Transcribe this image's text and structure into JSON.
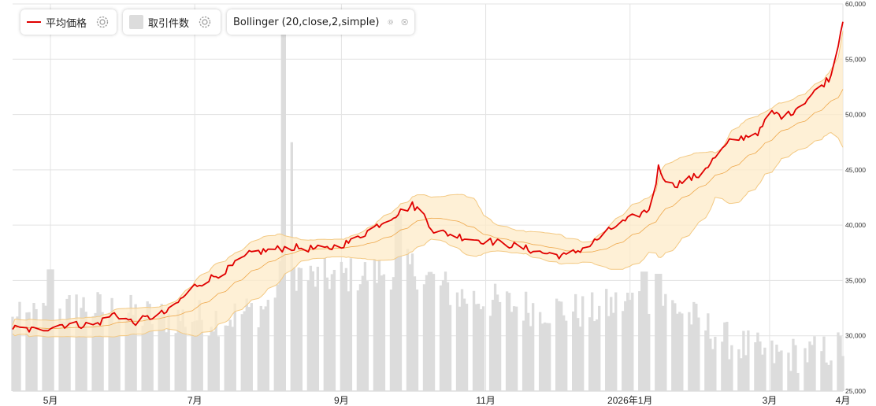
{
  "legend": {
    "avg_price_label": "平均価格",
    "trade_count_label": "取引件数",
    "bollinger_label": "Bollinger (20,close,2,simple)"
  },
  "colors": {
    "price": "#e00000",
    "band_fill": "#fdebc8",
    "band_line": "#f3c983",
    "mid_line": "#eea74a",
    "volume": "#dcdcdc",
    "grid": "#e3e3e3"
  },
  "icons": [
    "gear-icon",
    "gear-icon",
    "gear-icon",
    "close-icon"
  ],
  "chart_data": {
    "type": "line",
    "title": "",
    "x_tick_labels": [
      "5月",
      "7月",
      "9月",
      "11月",
      "2026年1月",
      "3月",
      "4月"
    ],
    "y_tick_labels": [
      "25,000",
      "30,000",
      "35,000",
      "40,000",
      "45,000",
      "50,000",
      "55,000",
      "60,000"
    ],
    "ylim": [
      25000,
      60000
    ],
    "grid": true,
    "legend_position": "top-left",
    "x_range_months": [
      "2025-04-15",
      "2026-04-01"
    ],
    "price_anchors": [
      [
        "2025-04-15",
        30700
      ],
      [
        "2025-04-25",
        30500
      ],
      [
        "2025-05-05",
        31000
      ],
      [
        "2025-05-20",
        31000
      ],
      [
        "2025-05-28",
        32000
      ],
      [
        "2025-06-05",
        31200
      ],
      [
        "2025-06-20",
        32200
      ],
      [
        "2025-07-01",
        34500
      ],
      [
        "2025-07-15",
        36000
      ],
      [
        "2025-07-25",
        37500
      ],
      [
        "2025-08-10",
        38000
      ],
      [
        "2025-08-25",
        37800
      ],
      [
        "2025-09-05",
        38500
      ],
      [
        "2025-09-20",
        40500
      ],
      [
        "2025-10-01",
        41800
      ],
      [
        "2025-10-05",
        41200
      ],
      [
        "2025-10-10",
        39500
      ],
      [
        "2025-10-25",
        38800
      ],
      [
        "2025-11-10",
        38300
      ],
      [
        "2025-11-25",
        37500
      ],
      [
        "2025-12-05",
        37200
      ],
      [
        "2025-12-15",
        38200
      ],
      [
        "2025-12-25",
        39800
      ],
      [
        "2026-01-05",
        41000
      ],
      [
        "2026-01-10",
        41500
      ],
      [
        "2026-01-13",
        45200
      ],
      [
        "2026-01-18",
        43500
      ],
      [
        "2026-01-30",
        44500
      ],
      [
        "2026-02-12",
        47500
      ],
      [
        "2026-02-25",
        48500
      ],
      [
        "2026-03-01",
        50200
      ],
      [
        "2026-03-08",
        49800
      ],
      [
        "2026-03-20",
        52000
      ],
      [
        "2026-03-27",
        53500
      ],
      [
        "2026-04-01",
        58500
      ]
    ],
    "volume_anchors": [
      [
        "2025-04-15",
        31000
      ],
      [
        "2025-05-15",
        32500
      ],
      [
        "2025-06-15",
        31500
      ],
      [
        "2025-07-15",
        31500
      ],
      [
        "2025-08-01",
        32500
      ],
      [
        "2025-08-08",
        36000
      ],
      [
        "2025-08-20",
        35000
      ],
      [
        "2025-09-15",
        35500
      ],
      [
        "2025-10-01",
        36000
      ],
      [
        "2025-10-20",
        33500
      ],
      [
        "2025-11-15",
        32500
      ],
      [
        "2025-12-15",
        32000
      ],
      [
        "2026-01-10",
        33500
      ],
      [
        "2026-01-20",
        32500
      ],
      [
        "2026-02-10",
        29500
      ],
      [
        "2026-03-01",
        28000
      ],
      [
        "2026-03-20",
        28200
      ],
      [
        "2026-04-01",
        28800
      ]
    ],
    "volume_spikes": [
      [
        "2025-08-08",
        57500
      ],
      [
        "2025-08-10",
        47500
      ],
      [
        "2025-05-01",
        36000
      ],
      [
        "2025-09-25",
        41000
      ],
      [
        "2026-01-07",
        35800
      ],
      [
        "2026-01-13",
        35600
      ]
    ],
    "series": [
      {
        "name": "平均価格",
        "kind": "line"
      },
      {
        "name": "取引件数",
        "kind": "bar"
      },
      {
        "name": "Bollinger (20,close,2,simple)",
        "kind": "band"
      }
    ]
  }
}
